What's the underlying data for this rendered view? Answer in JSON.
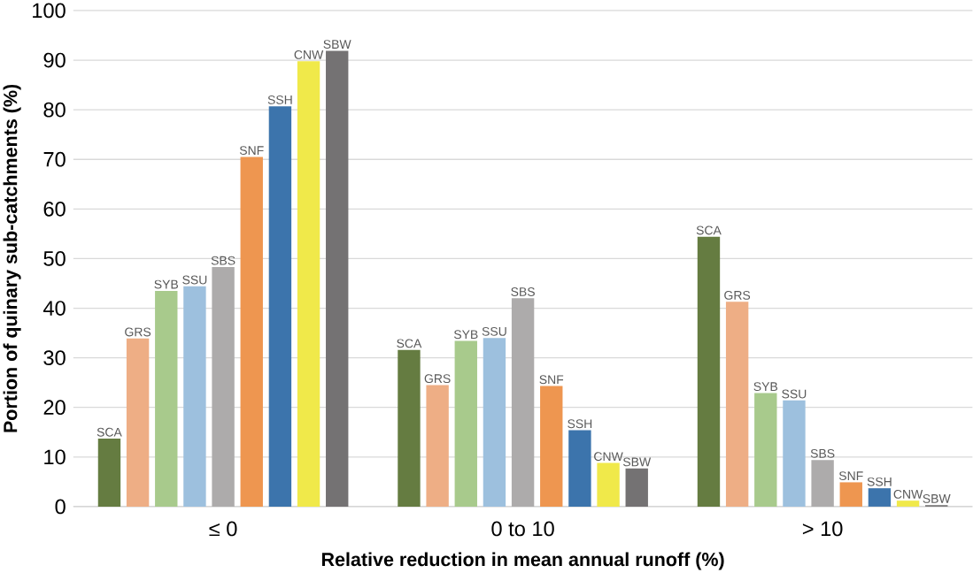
{
  "chart_data": {
    "type": "bar",
    "xlabel": "Relative reduction in mean annual runoff (%)",
    "ylabel": "Portion of quinary sub-catchments (%)",
    "categories": [
      "≤ 0",
      "0 to 10",
      "> 10"
    ],
    "series": [
      {
        "name": "SCA",
        "color": "#657c41",
        "values": [
          13.7,
          31.6,
          54.4
        ]
      },
      {
        "name": "GRS",
        "color": "#eeae85",
        "values": [
          33.9,
          24.5,
          41.3
        ]
      },
      {
        "name": "SYB",
        "color": "#a8ca8c",
        "values": [
          43.5,
          33.4,
          22.9
        ]
      },
      {
        "name": "SSU",
        "color": "#9dc0de",
        "values": [
          44.4,
          34.0,
          21.4
        ]
      },
      {
        "name": "SBS",
        "color": "#adabab",
        "values": [
          48.3,
          42.0,
          9.4
        ]
      },
      {
        "name": "SNF",
        "color": "#ee9650",
        "values": [
          70.5,
          24.3,
          4.9
        ]
      },
      {
        "name": "SSH",
        "color": "#3c74ac",
        "values": [
          80.7,
          15.4,
          3.7
        ]
      },
      {
        "name": "CNW",
        "color": "#f0e94a",
        "values": [
          89.8,
          8.8,
          1.2
        ]
      },
      {
        "name": "SBW",
        "color": "#747273",
        "values": [
          91.9,
          7.7,
          0.3
        ]
      }
    ],
    "ylim": [
      0,
      100
    ],
    "yticks": [
      0,
      10,
      20,
      30,
      40,
      50,
      60,
      70,
      80,
      90,
      100
    ],
    "grid": "y"
  }
}
